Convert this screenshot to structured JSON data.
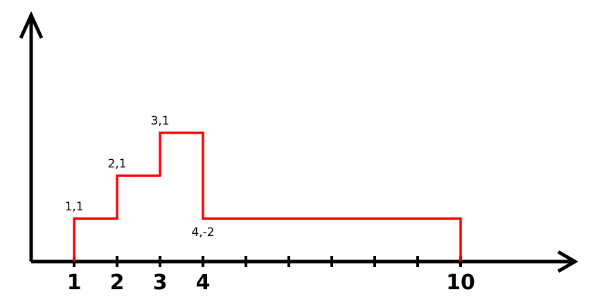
{
  "diagram": {
    "axis_color": "#000000",
    "line_color": "#ff0000",
    "x_ticks": [
      1,
      2,
      3,
      4,
      5,
      6,
      7,
      8,
      9,
      10
    ],
    "x_tick_labels": [
      {
        "x": 1,
        "text": "1"
      },
      {
        "x": 2,
        "text": "2"
      },
      {
        "x": 3,
        "text": "3"
      },
      {
        "x": 4,
        "text": "4"
      },
      {
        "x": 10,
        "text": "10"
      }
    ],
    "steps": [
      {
        "x_start": 1,
        "x_end": 2,
        "level": 1
      },
      {
        "x_start": 2,
        "x_end": 3,
        "level": 2
      },
      {
        "x_start": 3,
        "x_end": 4,
        "level": 3
      },
      {
        "x_start": 4,
        "x_end": 10,
        "level": 1
      }
    ],
    "point_labels": [
      {
        "text": "1,1",
        "x": 1,
        "level": 1,
        "placement": "above"
      },
      {
        "text": "2,1",
        "x": 2,
        "level": 2,
        "placement": "above"
      },
      {
        "text": "3,1",
        "x": 3,
        "level": 3,
        "placement": "above"
      },
      {
        "text": "4,-2",
        "x": 4,
        "level": 1,
        "placement": "below"
      }
    ]
  }
}
